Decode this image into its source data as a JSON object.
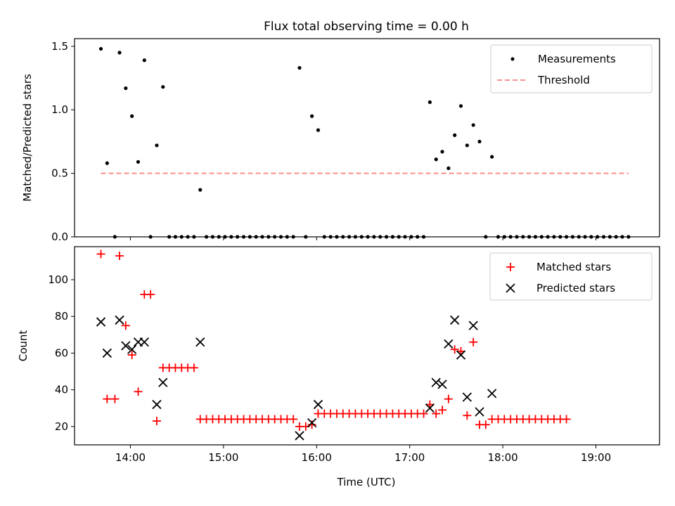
{
  "figure": {
    "title": "Flux total observing time = 0.00 h"
  },
  "chart_data": [
    {
      "type": "scatter",
      "ylabel": "Matched/Predicted stars",
      "xlabel": "",
      "xlim": [
        "13:24",
        "19:41"
      ],
      "ylim": [
        0,
        1.56
      ],
      "yticks": [
        0.0,
        0.5,
        1.0,
        1.5
      ],
      "ytick_labels": [
        "0.0",
        "0.5",
        "1.0",
        "1.5"
      ],
      "xticks": [
        "14:00",
        "15:00",
        "16:00",
        "17:00",
        "18:00",
        "19:00"
      ],
      "show_xtick_labels": false,
      "grid": false,
      "legend": {
        "position": "top-right",
        "entries": [
          "Measurements",
          "Threshold"
        ]
      },
      "series": [
        {
          "name": "Measurements",
          "marker": "dot",
          "color": "#000000",
          "points": [
            [
              "13:41",
              1.48
            ],
            [
              "13:45",
              0.58
            ],
            [
              "13:50",
              0.0
            ],
            [
              "13:53",
              1.45
            ],
            [
              "13:57",
              1.17
            ],
            [
              "14:01",
              0.95
            ],
            [
              "14:05",
              0.59
            ],
            [
              "14:09",
              1.39
            ],
            [
              "14:13",
              0.0
            ],
            [
              "14:17",
              0.72
            ],
            [
              "14:21",
              1.18
            ],
            [
              "14:25",
              0.0
            ],
            [
              "14:29",
              0.0
            ],
            [
              "14:33",
              0.0
            ],
            [
              "14:37",
              0.0
            ],
            [
              "14:41",
              0.0
            ],
            [
              "14:45",
              0.37
            ],
            [
              "14:49",
              0.0
            ],
            [
              "14:53",
              0.0
            ],
            [
              "14:57",
              0.0
            ],
            [
              "15:01",
              0.0
            ],
            [
              "15:05",
              0.0
            ],
            [
              "15:09",
              0.0
            ],
            [
              "15:13",
              0.0
            ],
            [
              "15:17",
              0.0
            ],
            [
              "15:21",
              0.0
            ],
            [
              "15:25",
              0.0
            ],
            [
              "15:29",
              0.0
            ],
            [
              "15:33",
              0.0
            ],
            [
              "15:37",
              0.0
            ],
            [
              "15:41",
              0.0
            ],
            [
              "15:45",
              0.0
            ],
            [
              "15:49",
              1.33
            ],
            [
              "15:53",
              0.0
            ],
            [
              "15:57",
              0.95
            ],
            [
              "16:01",
              0.84
            ],
            [
              "16:05",
              0.0
            ],
            [
              "16:09",
              0.0
            ],
            [
              "16:13",
              0.0
            ],
            [
              "16:17",
              0.0
            ],
            [
              "16:21",
              0.0
            ],
            [
              "16:25",
              0.0
            ],
            [
              "16:29",
              0.0
            ],
            [
              "16:33",
              0.0
            ],
            [
              "16:37",
              0.0
            ],
            [
              "16:41",
              0.0
            ],
            [
              "16:45",
              0.0
            ],
            [
              "16:49",
              0.0
            ],
            [
              "16:53",
              0.0
            ],
            [
              "16:57",
              0.0
            ],
            [
              "17:01",
              0.0
            ],
            [
              "17:05",
              0.0
            ],
            [
              "17:09",
              0.0
            ],
            [
              "17:13",
              1.06
            ],
            [
              "17:17",
              0.61
            ],
            [
              "17:21",
              0.67
            ],
            [
              "17:25",
              0.54
            ],
            [
              "17:29",
              0.8
            ],
            [
              "17:33",
              1.03
            ],
            [
              "17:37",
              0.72
            ],
            [
              "17:41",
              0.88
            ],
            [
              "17:45",
              0.75
            ],
            [
              "17:49",
              0.0
            ],
            [
              "17:53",
              0.63
            ],
            [
              "17:57",
              0.0
            ],
            [
              "18:01",
              0.0
            ],
            [
              "18:05",
              0.0
            ],
            [
              "18:09",
              0.0
            ],
            [
              "18:13",
              0.0
            ],
            [
              "18:17",
              0.0
            ],
            [
              "18:21",
              0.0
            ],
            [
              "18:25",
              0.0
            ],
            [
              "18:29",
              0.0
            ],
            [
              "18:33",
              0.0
            ],
            [
              "18:37",
              0.0
            ],
            [
              "18:41",
              0.0
            ],
            [
              "18:45",
              0.0
            ],
            [
              "18:49",
              0.0
            ],
            [
              "18:53",
              0.0
            ],
            [
              "18:57",
              0.0
            ],
            [
              "19:01",
              0.0
            ],
            [
              "19:05",
              0.0
            ],
            [
              "19:09",
              0.0
            ],
            [
              "19:13",
              0.0
            ],
            [
              "19:17",
              0.0
            ],
            [
              "19:21",
              0.0
            ]
          ]
        },
        {
          "name": "Threshold",
          "marker": "dashed-line",
          "color": "#ff7f7f",
          "points": [
            [
              "13:41",
              0.5
            ],
            [
              "19:21",
              0.5
            ]
          ]
        }
      ]
    },
    {
      "type": "scatter",
      "ylabel": "Count",
      "xlabel": "Time (UTC)",
      "xlim": [
        "13:24",
        "19:41"
      ],
      "ylim": [
        10,
        118
      ],
      "yticks": [
        20,
        40,
        60,
        80,
        100
      ],
      "ytick_labels": [
        "20",
        "40",
        "60",
        "80",
        "100"
      ],
      "xticks": [
        "14:00",
        "15:00",
        "16:00",
        "17:00",
        "18:00",
        "19:00"
      ],
      "xtick_labels": [
        "14:00",
        "15:00",
        "16:00",
        "17:00",
        "18:00",
        "19:00"
      ],
      "show_xtick_labels": true,
      "grid": false,
      "legend": {
        "position": "top-right",
        "entries": [
          "Matched stars",
          "Predicted stars"
        ]
      },
      "series": [
        {
          "name": "Matched stars",
          "marker": "plus",
          "color": "#ff0000",
          "points": [
            [
              "13:41",
              114
            ],
            [
              "13:45",
              35
            ],
            [
              "13:50",
              35
            ],
            [
              "13:53",
              113
            ],
            [
              "13:57",
              75
            ],
            [
              "14:01",
              59
            ],
            [
              "14:05",
              39
            ],
            [
              "14:09",
              92
            ],
            [
              "14:13",
              92
            ],
            [
              "14:17",
              23
            ],
            [
              "14:21",
              52
            ],
            [
              "14:25",
              52
            ],
            [
              "14:29",
              52
            ],
            [
              "14:33",
              52
            ],
            [
              "14:37",
              52
            ],
            [
              "14:41",
              52
            ],
            [
              "14:45",
              24
            ],
            [
              "14:49",
              24
            ],
            [
              "14:53",
              24
            ],
            [
              "14:57",
              24
            ],
            [
              "15:01",
              24
            ],
            [
              "15:05",
              24
            ],
            [
              "15:09",
              24
            ],
            [
              "15:13",
              24
            ],
            [
              "15:17",
              24
            ],
            [
              "15:21",
              24
            ],
            [
              "15:25",
              24
            ],
            [
              "15:29",
              24
            ],
            [
              "15:33",
              24
            ],
            [
              "15:37",
              24
            ],
            [
              "15:41",
              24
            ],
            [
              "15:45",
              24
            ],
            [
              "15:49",
              20
            ],
            [
              "15:53",
              20
            ],
            [
              "15:57",
              21
            ],
            [
              "16:01",
              27
            ],
            [
              "16:05",
              27
            ],
            [
              "16:09",
              27
            ],
            [
              "16:13",
              27
            ],
            [
              "16:17",
              27
            ],
            [
              "16:21",
              27
            ],
            [
              "16:25",
              27
            ],
            [
              "16:29",
              27
            ],
            [
              "16:33",
              27
            ],
            [
              "16:37",
              27
            ],
            [
              "16:41",
              27
            ],
            [
              "16:45",
              27
            ],
            [
              "16:49",
              27
            ],
            [
              "16:53",
              27
            ],
            [
              "16:57",
              27
            ],
            [
              "17:01",
              27
            ],
            [
              "17:05",
              27
            ],
            [
              "17:09",
              27
            ],
            [
              "17:13",
              32
            ],
            [
              "17:17",
              27
            ],
            [
              "17:21",
              29
            ],
            [
              "17:25",
              35
            ],
            [
              "17:29",
              62
            ],
            [
              "17:33",
              61
            ],
            [
              "17:37",
              26
            ],
            [
              "17:41",
              66
            ],
            [
              "17:45",
              21
            ],
            [
              "17:49",
              21
            ],
            [
              "17:53",
              24
            ],
            [
              "17:57",
              24
            ],
            [
              "18:01",
              24
            ],
            [
              "18:05",
              24
            ],
            [
              "18:09",
              24
            ],
            [
              "18:13",
              24
            ],
            [
              "18:17",
              24
            ],
            [
              "18:21",
              24
            ],
            [
              "18:25",
              24
            ],
            [
              "18:29",
              24
            ],
            [
              "18:33",
              24
            ],
            [
              "18:37",
              24
            ],
            [
              "18:41",
              24
            ]
          ]
        },
        {
          "name": "Predicted stars",
          "marker": "x",
          "color": "#000000",
          "points": [
            [
              "13:41",
              77
            ],
            [
              "13:45",
              60
            ],
            [
              "13:53",
              78
            ],
            [
              "13:57",
              64
            ],
            [
              "14:01",
              62
            ],
            [
              "14:05",
              66
            ],
            [
              "14:09",
              66
            ],
            [
              "14:17",
              32
            ],
            [
              "14:21",
              44
            ],
            [
              "14:45",
              66
            ],
            [
              "15:49",
              15
            ],
            [
              "15:57",
              22
            ],
            [
              "16:01",
              32
            ],
            [
              "17:13",
              30
            ],
            [
              "17:17",
              44
            ],
            [
              "17:21",
              43
            ],
            [
              "17:25",
              65
            ],
            [
              "17:29",
              78
            ],
            [
              "17:33",
              59
            ],
            [
              "17:37",
              36
            ],
            [
              "17:41",
              75
            ],
            [
              "17:45",
              28
            ],
            [
              "17:53",
              38
            ]
          ]
        }
      ]
    }
  ]
}
